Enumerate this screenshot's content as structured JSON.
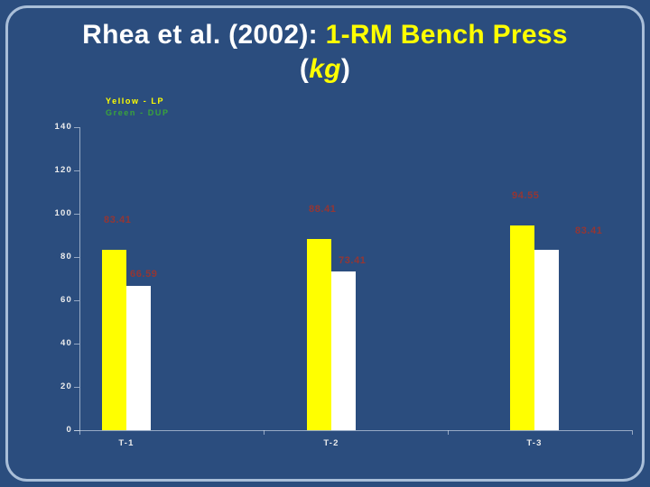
{
  "title": {
    "prefix": "Rhea et al. (2002): ",
    "highlight": "1-RM Bench Press",
    "unit_open": "(",
    "unit": "kg",
    "unit_close": ")"
  },
  "legend": {
    "items": [
      {
        "label": "Yellow - LP",
        "color": "#FFFF00"
      },
      {
        "label": "Green - DUP",
        "color": "#3AA53A"
      }
    ]
  },
  "chart_data": {
    "type": "bar",
    "title": "Rhea et al. (2002): 1-RM Bench Press (kg)",
    "categories": [
      "T-1",
      "T-2",
      "T-3"
    ],
    "series": [
      {
        "name": "LP",
        "legend": "Yellow - LP",
        "color": "#FFFF00",
        "values": [
          83.41,
          88.41,
          94.55
        ]
      },
      {
        "name": "DUP",
        "legend": "Green - DUP",
        "color": "#FFFFFF",
        "values": [
          66.59,
          73.41,
          83.41
        ]
      }
    ],
    "xlabel": "",
    "ylabel": "",
    "ylim": [
      0,
      140
    ],
    "ytick_step": 20,
    "yticks": [
      0,
      20,
      40,
      60,
      80,
      100,
      120,
      140
    ],
    "grid": false,
    "legend_position": "top-left",
    "data_label_color": "#943634",
    "background_color": "#2B4D7E",
    "border_color": "#A9BED8",
    "axis_text_color": "#EDEDED"
  }
}
